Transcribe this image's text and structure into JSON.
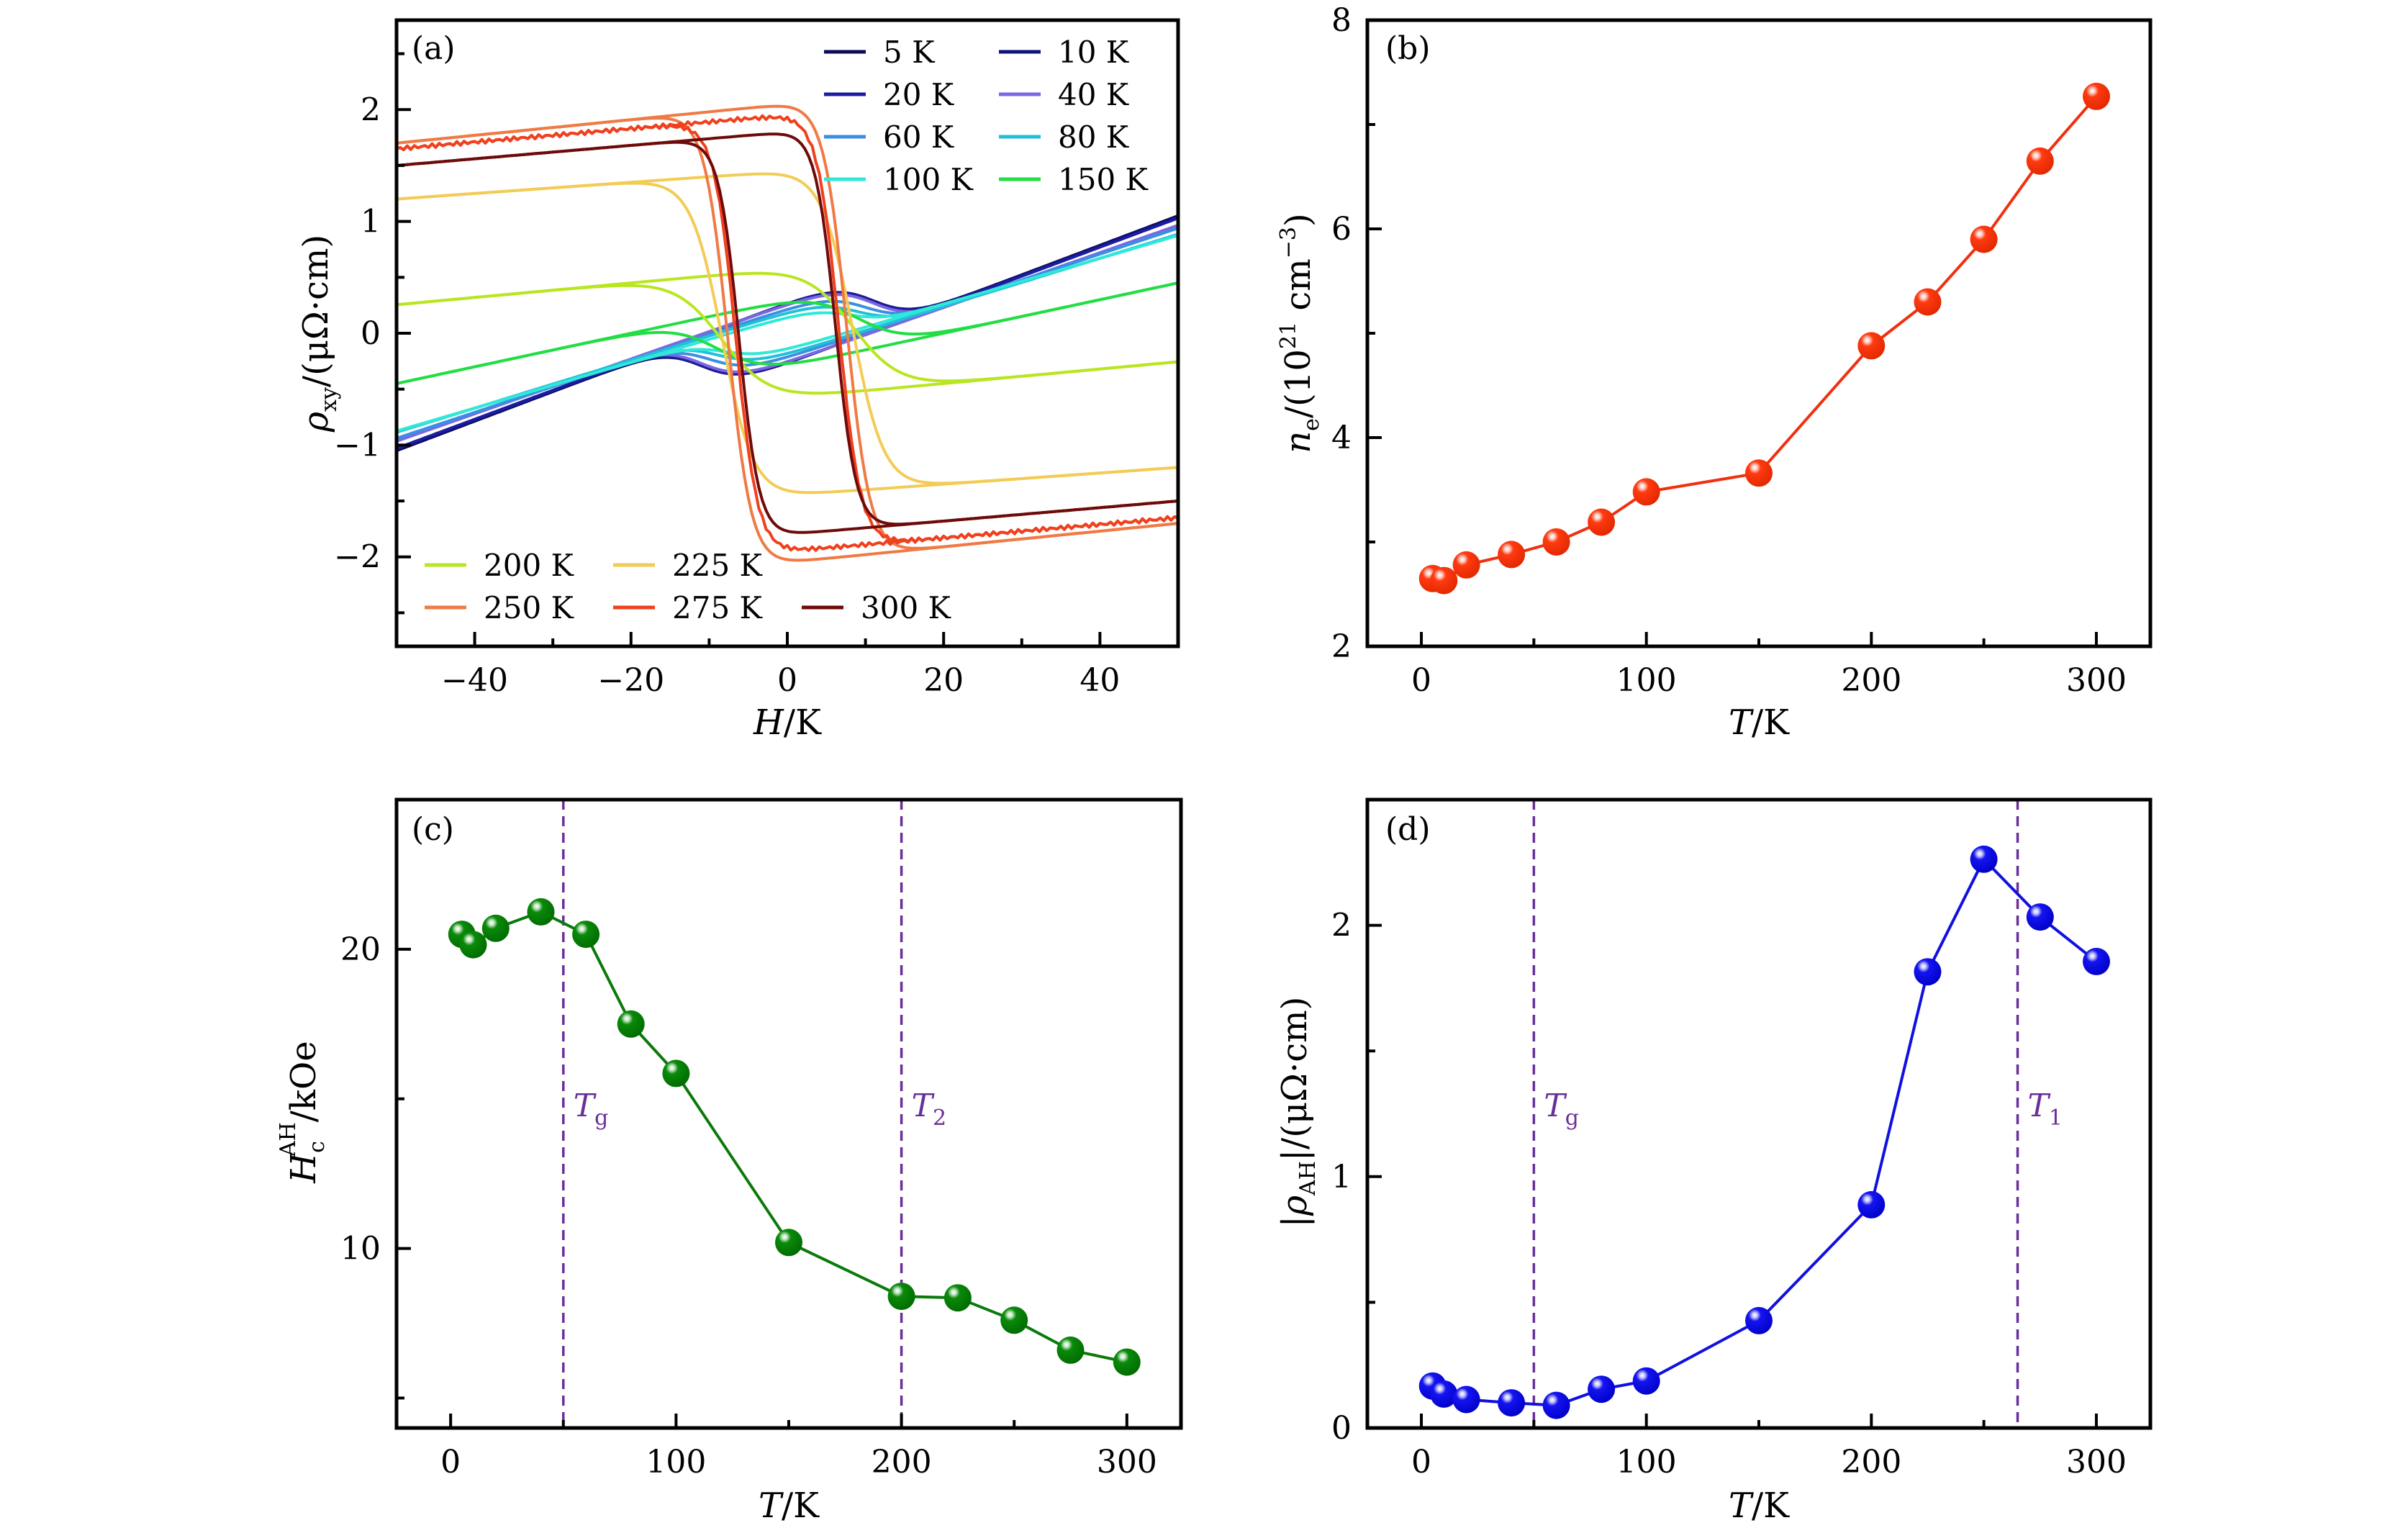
{
  "chart_data": [
    {
      "id": "a",
      "type": "line",
      "panel_label": "(a)",
      "xlabel": {
        "var": "H",
        "rest": "/K"
      },
      "ylabel": {
        "var": "ρ",
        "sub": "xy",
        "rest": "/(μΩ·cm)"
      },
      "xlim": [
        -50,
        50
      ],
      "ylim": [
        -2.8,
        2.8
      ],
      "xticks": [
        -40,
        -20,
        0,
        20,
        40
      ],
      "xtick_labels": [
        "−40",
        "−20",
        "0",
        "20",
        "40"
      ],
      "yticks": [
        -2,
        -1,
        0,
        1,
        2
      ],
      "ytick_labels": [
        "−2",
        "−1",
        "0",
        "1",
        "2"
      ],
      "grid": false,
      "legend_placement": [
        "top-right",
        "bottom-left"
      ],
      "model_note": "each curve is a hysteresis loop: sweep-down ρ = s·H − A·tanh((H + h)/w), sweep-up ρ = s·H − A·tanh((H − h)/w); H in kOe",
      "series": [
        {
          "name": "5 K",
          "color": "#0b0b55",
          "A": 0.27,
          "h": -11,
          "w": 5,
          "s": 0.0264
        },
        {
          "name": "10 K",
          "color": "#10107a",
          "A": 0.27,
          "h": -11,
          "w": 5,
          "s": 0.0262
        },
        {
          "name": "20 K",
          "color": "#1c1ca0",
          "A": 0.27,
          "h": -11,
          "w": 5,
          "s": 0.026
        },
        {
          "name": "40 K",
          "color": "#7b68e0",
          "A": 0.26,
          "h": -11,
          "w": 5,
          "s": 0.0245
        },
        {
          "name": "60 K",
          "color": "#3a8fe0",
          "A": 0.22,
          "h": -10,
          "w": 5,
          "s": 0.0232
        },
        {
          "name": "80 K",
          "color": "#22c0d8",
          "A": 0.19,
          "h": -9,
          "w": 5,
          "s": 0.0215
        },
        {
          "name": "100 K",
          "color": "#30e8d8",
          "A": 0.15,
          "h": -8,
          "w": 5,
          "s": 0.0205
        },
        {
          "name": "150 K",
          "color": "#22dd44",
          "A": 0.3,
          "h": -9,
          "w": 6,
          "s": 0.015
        },
        {
          "name": "200 K",
          "color": "#b8e620",
          "A": 0.58,
          "h": 8.4,
          "w": 6,
          "s": 0.0065
        },
        {
          "name": "225 K",
          "color": "#f2cc55",
          "A": 1.45,
          "h": 8.35,
          "w": 4,
          "s": 0.005
        },
        {
          "name": "250 K",
          "color": "#f07a45",
          "A": 2.05,
          "h": 7.6,
          "w": 3,
          "s": 0.007
        },
        {
          "name": "275 K",
          "color": "#f0401e",
          "A": 1.95,
          "h": 6.6,
          "w": 2.8,
          "s": 0.006
        },
        {
          "name": "300 K",
          "color": "#6e0a0a",
          "A": 1.8,
          "h": 6.2,
          "w": 2.6,
          "s": 0.006
        }
      ]
    },
    {
      "id": "b",
      "type": "line",
      "panel_label": "(b)",
      "xlabel": {
        "var": "T",
        "rest": "/K"
      },
      "ylabel": {
        "var": "n",
        "sub": "e",
        "rest1": "/(10",
        "sup1": "21",
        "rest2": " cm",
        "sup2": "−3",
        "rest3": ")"
      },
      "xlim": [
        -24,
        324
      ],
      "ylim": [
        2,
        8
      ],
      "xticks": [
        0,
        100,
        200,
        300
      ],
      "xtick_labels": [
        "0",
        "100",
        "200",
        "300"
      ],
      "xminor": [
        50,
        150,
        250
      ],
      "yticks": [
        2,
        4,
        6,
        8
      ],
      "ytick_labels": [
        "2",
        "4",
        "6",
        "8"
      ],
      "yminor": [
        3,
        5,
        7
      ],
      "grid": false,
      "color": "#f03010",
      "x": [
        5,
        10,
        20,
        40,
        60,
        80,
        100,
        150,
        200,
        225,
        250,
        275,
        300
      ],
      "y": [
        2.65,
        2.63,
        2.78,
        2.88,
        3.0,
        3.19,
        3.48,
        3.66,
        4.88,
        5.3,
        5.9,
        6.65,
        7.27
      ]
    },
    {
      "id": "c",
      "type": "line",
      "panel_label": "(c)",
      "xlabel": {
        "var": "T",
        "rest": "/K"
      },
      "ylabel": {
        "var": "H",
        "sub": "c",
        "sup": "AH",
        "rest": "/kOe"
      },
      "xlim": [
        -24,
        324
      ],
      "ylim": [
        4,
        25
      ],
      "xticks": [
        0,
        100,
        200,
        300
      ],
      "xtick_labels": [
        "0",
        "100",
        "200",
        "300"
      ],
      "xminor": [
        50,
        150,
        250
      ],
      "yticks": [
        10,
        20
      ],
      "ytick_labels": [
        "10",
        "20"
      ],
      "yminor": [
        5,
        15
      ],
      "grid": false,
      "color": "#0a7a0a",
      "x": [
        5,
        10,
        20,
        40,
        60,
        80,
        100,
        150,
        200,
        225,
        250,
        275,
        300
      ],
      "y": [
        20.5,
        20.15,
        20.7,
        21.25,
        20.5,
        17.5,
        15.85,
        10.2,
        8.4,
        8.35,
        7.6,
        6.6,
        6.2
      ],
      "annotations": [
        {
          "x": 50,
          "label_var": "T",
          "label_sub": "g"
        },
        {
          "x": 200,
          "label_var": "T",
          "label_sub": "2"
        }
      ]
    },
    {
      "id": "d",
      "type": "line",
      "panel_label": "(d)",
      "xlabel": {
        "var": "T",
        "rest": "/K"
      },
      "ylabel": {
        "pre": "|",
        "var": "ρ",
        "sub": "AH",
        "rest": "|/(μΩ·cm)"
      },
      "xlim": [
        -24,
        324
      ],
      "ylim": [
        0,
        2.5
      ],
      "xticks": [
        0,
        100,
        200,
        300
      ],
      "xtick_labels": [
        "0",
        "100",
        "200",
        "300"
      ],
      "xminor": [
        50,
        150,
        250
      ],
      "yticks": [
        0,
        1,
        2
      ],
      "ytick_labels": [
        "0",
        "1",
        "2"
      ],
      "yminor": [
        0.5,
        1.5
      ],
      "grid": false,
      "color": "#1010e0",
      "x": [
        5,
        10,
        20,
        40,
        60,
        80,
        100,
        150,
        200,
        225,
        250,
        275,
        300
      ],
      "y": [
        0.167,
        0.135,
        0.113,
        0.1,
        0.09,
        0.154,
        0.187,
        0.427,
        0.888,
        1.815,
        2.263,
        2.033,
        1.856
      ],
      "annotations": [
        {
          "x": 50,
          "label_var": "T",
          "label_sub": "g"
        },
        {
          "x": 265,
          "label_var": "T",
          "label_sub": "1"
        }
      ]
    }
  ]
}
